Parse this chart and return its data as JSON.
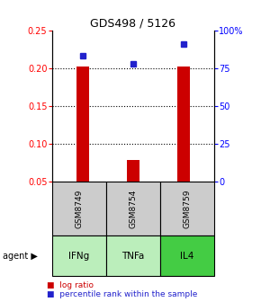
{
  "title": "GDS498 / 5126",
  "samples": [
    "GSM8749",
    "GSM8754",
    "GSM8759"
  ],
  "agents": [
    "IFNg",
    "TNFa",
    "IL4"
  ],
  "log_ratios": [
    0.202,
    0.078,
    0.202
  ],
  "percentile_ranks": [
    83,
    78,
    91
  ],
  "ylim_left": [
    0.05,
    0.25
  ],
  "ylim_right": [
    0,
    100
  ],
  "yticks_left": [
    0.05,
    0.1,
    0.15,
    0.2,
    0.25
  ],
  "yticks_right": [
    0,
    25,
    50,
    75,
    100
  ],
  "ytick_labels_right": [
    "0",
    "25",
    "50",
    "75",
    "100%"
  ],
  "bar_color": "#cc0000",
  "dot_color": "#2222cc",
  "sample_box_color": "#cccccc",
  "agent_colors": [
    "#bbeebb",
    "#bbeebb",
    "#44cc44"
  ],
  "bar_width": 0.25,
  "x_positions": [
    1,
    2,
    3
  ]
}
